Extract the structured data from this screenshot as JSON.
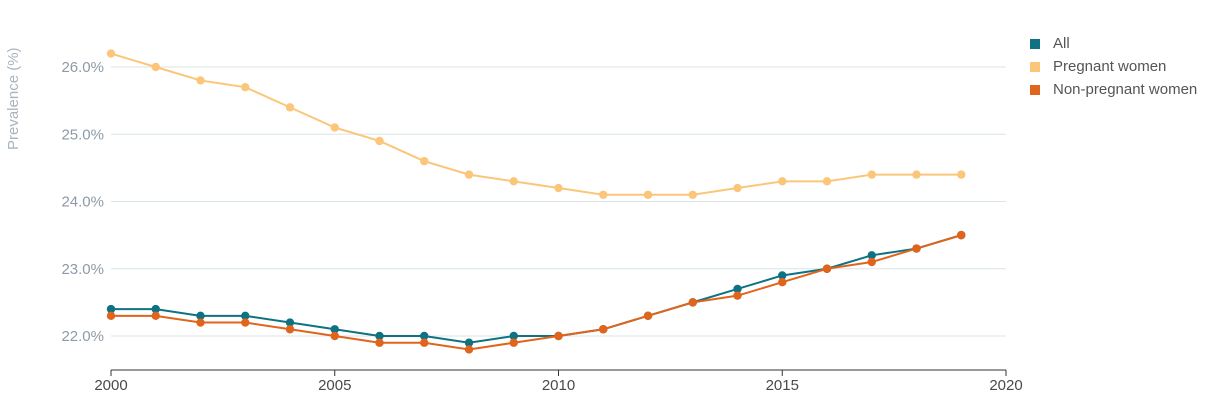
{
  "chart_data": {
    "type": "line",
    "ylabel": "Prevalence (%)",
    "xlabel": "",
    "xlim": [
      2000,
      2020
    ],
    "ylim": [
      21.5,
      26.6
    ],
    "x_ticks": [
      "2000",
      "2005",
      "2010",
      "2015",
      "2020"
    ],
    "y_ticks": [
      "22.0%",
      "23.0%",
      "24.0%",
      "25.0%",
      "26.0%"
    ],
    "grid": true,
    "legend_position": "top-right",
    "x": [
      2000,
      2001,
      2002,
      2003,
      2004,
      2005,
      2006,
      2007,
      2008,
      2009,
      2010,
      2011,
      2012,
      2013,
      2014,
      2015,
      2016,
      2017,
      2018,
      2019
    ],
    "series": [
      {
        "name": "All",
        "color": "#0e7283",
        "values": [
          22.4,
          22.4,
          22.3,
          22.3,
          22.2,
          22.1,
          22.0,
          22.0,
          21.9,
          22.0,
          22.0,
          22.1,
          22.3,
          22.5,
          22.7,
          22.9,
          23.0,
          23.2,
          23.3,
          23.5
        ]
      },
      {
        "name": "Pregnant women",
        "color": "#fbc67a",
        "values": [
          26.2,
          26.0,
          25.8,
          25.7,
          25.4,
          25.1,
          24.9,
          24.6,
          24.4,
          24.3,
          24.2,
          24.1,
          24.1,
          24.1,
          24.2,
          24.3,
          24.3,
          24.4,
          24.4,
          24.4
        ]
      },
      {
        "name": "Non-pregnant women",
        "color": "#e0641c",
        "values": [
          22.3,
          22.3,
          22.2,
          22.2,
          22.1,
          22.0,
          21.9,
          21.9,
          21.8,
          21.9,
          22.0,
          22.1,
          22.3,
          22.5,
          22.6,
          22.8,
          23.0,
          23.1,
          23.3,
          23.5
        ]
      }
    ]
  }
}
